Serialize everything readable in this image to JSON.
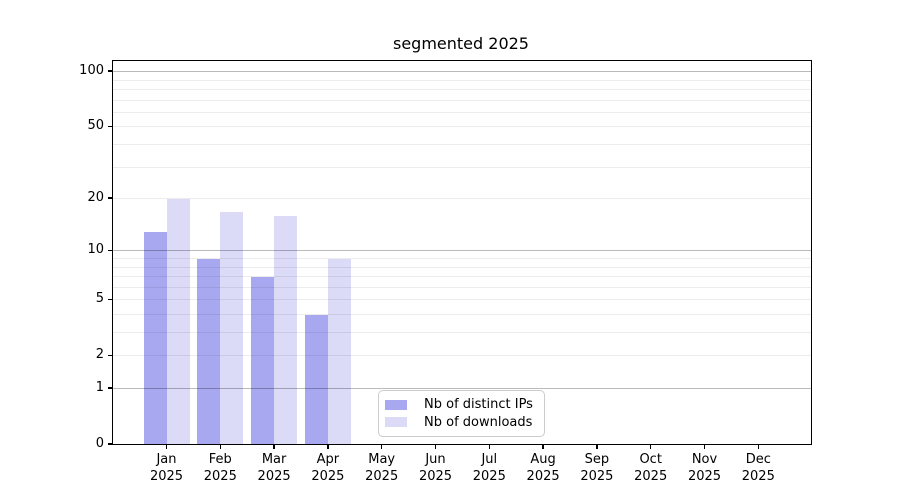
{
  "title": "segmented 2025",
  "chart_data": {
    "type": "bar",
    "title": "segmented 2025",
    "xlabel": "",
    "ylabel": "",
    "categories": [
      "Jan 2025",
      "Feb 2025",
      "Mar 2025",
      "Apr 2025",
      "May 2025",
      "Jun 2025",
      "Jul 2025",
      "Aug 2025",
      "Sep 2025",
      "Oct 2025",
      "Nov 2025",
      "Dec 2025"
    ],
    "x_tick_months": [
      "Jan",
      "Feb",
      "Mar",
      "Apr",
      "May",
      "Jun",
      "Jul",
      "Aug",
      "Sep",
      "Oct",
      "Nov",
      "Dec"
    ],
    "x_tick_year": "2025",
    "series": [
      {
        "name": "Nb of distinct IPs",
        "color": "#a8a8f0",
        "values": [
          13,
          9,
          7,
          4,
          0,
          0,
          0,
          0,
          0,
          0,
          0,
          0
        ]
      },
      {
        "name": "Nb of downloads",
        "color": "#dbdbf8",
        "values": [
          20,
          17,
          16,
          9,
          0,
          0,
          0,
          0,
          0,
          0,
          0,
          0
        ]
      }
    ],
    "y_axis": {
      "scale": "log1p",
      "tick_values": [
        0,
        1,
        2,
        5,
        10,
        20,
        50,
        100
      ],
      "tick_labels": [
        "0",
        "1",
        "2",
        "5",
        "10",
        "20",
        "50",
        "100"
      ],
      "major_grid_values": [
        1,
        10,
        100
      ],
      "minor_grid_values": [
        2,
        3,
        4,
        5,
        6,
        7,
        8,
        9,
        20,
        30,
        40,
        50,
        60,
        70,
        80,
        90
      ],
      "ylim": [
        0,
        115
      ]
    },
    "legend": {
      "position": "lower center",
      "entries": [
        "Nb of distinct IPs",
        "Nb of downloads"
      ]
    },
    "grid": true,
    "colors": {
      "spine": "#000000",
      "background": "#ffffff",
      "major_grid": "#bdbdbd",
      "minor_grid": "#ececec"
    }
  }
}
